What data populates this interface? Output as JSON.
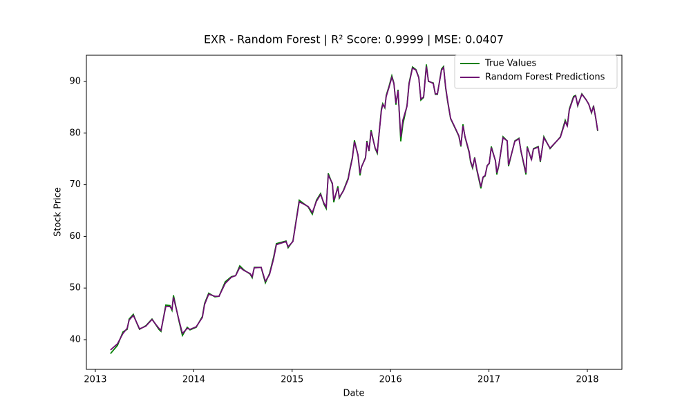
{
  "chart_data": {
    "type": "line",
    "title": "EXR - Random Forest | R² Score: 0.9999 | MSE: 0.0407",
    "xlabel": "Date",
    "ylabel": "Stock Price",
    "x": [
      2013.154,
      2013.225,
      2013.281,
      2013.323,
      2013.344,
      2013.386,
      2013.428,
      2013.449,
      2013.513,
      2013.576,
      2013.646,
      2013.667,
      2013.716,
      2013.758,
      2013.779,
      2013.794,
      2013.85,
      2013.885,
      2013.934,
      2013.962,
      2014.025,
      2014.088,
      2014.11,
      2014.152,
      2014.215,
      2014.257,
      2014.32,
      2014.383,
      2014.426,
      2014.468,
      2014.51,
      2014.573,
      2014.594,
      2014.615,
      2014.685,
      2014.728,
      2014.77,
      2014.812,
      2014.84,
      2014.938,
      2014.959,
      2015.008,
      2015.072,
      2015.163,
      2015.205,
      2015.247,
      2015.289,
      2015.324,
      2015.346,
      2015.367,
      2015.409,
      2015.423,
      2015.465,
      2015.479,
      2015.521,
      2015.57,
      2015.584,
      2015.612,
      2015.633,
      2015.669,
      2015.69,
      2015.704,
      2015.746,
      2015.76,
      2015.781,
      2015.802,
      2015.844,
      2015.865,
      2015.907,
      2015.921,
      2015.942,
      2015.956,
      2015.985,
      2016.013,
      2016.034,
      2016.055,
      2016.076,
      2016.104,
      2016.125,
      2016.167,
      2016.188,
      2016.223,
      2016.258,
      2016.287,
      2016.308,
      2016.336,
      2016.364,
      2016.385,
      2016.434,
      2016.455,
      2016.476,
      2016.518,
      2016.539,
      2016.56,
      2016.581,
      2016.61,
      2016.645,
      2016.694,
      2016.715,
      2016.736,
      2016.757,
      2016.799,
      2016.813,
      2016.834,
      2016.855,
      2016.876,
      2016.918,
      2016.94,
      2016.961,
      2016.982,
      2017.003,
      2017.024,
      2017.066,
      2017.08,
      2017.101,
      2017.143,
      2017.185,
      2017.199,
      2017.263,
      2017.305,
      2017.326,
      2017.376,
      2017.389,
      2017.432,
      2017.452,
      2017.501,
      2017.522,
      2017.558,
      2017.621,
      2017.691,
      2017.726,
      2017.775,
      2017.796,
      2017.817,
      2017.86,
      2017.881,
      2017.902,
      2017.944,
      2017.986,
      2018.014,
      2018.042,
      2018.063,
      2018.084,
      2018.105
    ],
    "series": [
      {
        "name": "True Values",
        "color": "#008000",
        "values": [
          37.3,
          38.9,
          41.5,
          42.0,
          44.0,
          44.9,
          42.9,
          42.0,
          42.7,
          44.0,
          42.0,
          41.6,
          46.7,
          46.6,
          45.7,
          48.6,
          43.6,
          40.8,
          42.4,
          41.9,
          42.4,
          44.5,
          47.0,
          49.0,
          48.3,
          48.4,
          51.2,
          52.2,
          52.4,
          54.3,
          53.5,
          52.7,
          52.0,
          54.0,
          54.0,
          51.0,
          52.8,
          56.0,
          58.6,
          59.1,
          57.8,
          59.1,
          67.0,
          65.7,
          64.3,
          67.0,
          68.3,
          66.2,
          65.4,
          72.2,
          70.1,
          66.6,
          69.7,
          67.4,
          68.9,
          71.3,
          72.8,
          75.3,
          78.6,
          75.7,
          71.8,
          73.4,
          75.3,
          78.5,
          76.5,
          80.6,
          77.0,
          76.1,
          84.7,
          85.7,
          84.9,
          87.3,
          89.1,
          91.1,
          89.7,
          85.5,
          88.4,
          78.4,
          81.7,
          85.3,
          89.7,
          92.8,
          92.3,
          90.8,
          86.4,
          86.9,
          93.3,
          90.0,
          89.7,
          87.5,
          87.5,
          92.4,
          92.9,
          88.7,
          86.0,
          82.8,
          81.4,
          79.4,
          77.4,
          81.7,
          79.2,
          76.2,
          74.4,
          73.2,
          75.3,
          72.9,
          69.3,
          71.4,
          71.7,
          73.7,
          74.1,
          77.4,
          74.6,
          72.0,
          73.8,
          79.3,
          78.5,
          73.6,
          78.5,
          79.0,
          76.4,
          72.0,
          77.4,
          74.8,
          77.0,
          77.4,
          74.4,
          79.3,
          77.0,
          78.5,
          79.3,
          82.5,
          81.3,
          84.7,
          87.1,
          87.3,
          85.3,
          87.6,
          86.5,
          85.6,
          83.9,
          85.3,
          83.0,
          80.4
        ]
      },
      {
        "name": "Random Forest Predictions",
        "color": "#6f0d73",
        "values": [
          38.0,
          39.2,
          41.2,
          42.2,
          43.8,
          44.7,
          43.0,
          42.1,
          42.6,
          43.9,
          42.2,
          41.8,
          46.4,
          46.4,
          45.9,
          48.2,
          43.8,
          41.2,
          42.2,
          42.0,
          42.5,
          44.3,
          46.8,
          48.8,
          48.4,
          48.4,
          50.9,
          52.1,
          52.4,
          54.0,
          53.4,
          52.8,
          52.2,
          53.9,
          54.0,
          51.3,
          52.6,
          55.7,
          58.4,
          59.0,
          58.0,
          59.0,
          66.7,
          65.8,
          64.6,
          66.8,
          68.1,
          66.4,
          65.7,
          71.8,
          70.3,
          67.0,
          69.4,
          67.6,
          68.8,
          71.1,
          72.6,
          75.1,
          78.3,
          75.8,
          72.2,
          73.4,
          75.2,
          78.3,
          76.6,
          80.3,
          77.1,
          76.3,
          84.4,
          85.5,
          85.0,
          87.1,
          88.9,
          90.8,
          89.6,
          85.8,
          88.2,
          79.3,
          82.5,
          85.2,
          89.5,
          92.6,
          92.2,
          90.7,
          86.6,
          87.0,
          92.9,
          90.1,
          89.6,
          87.6,
          87.6,
          92.2,
          92.7,
          88.9,
          86.2,
          82.9,
          81.5,
          79.5,
          77.6,
          81.4,
          79.3,
          76.4,
          74.6,
          73.4,
          75.2,
          73.1,
          69.6,
          71.5,
          71.8,
          73.7,
          74.2,
          77.2,
          74.7,
          72.3,
          73.9,
          79.1,
          78.5,
          73.8,
          78.4,
          78.9,
          76.5,
          72.3,
          77.2,
          74.9,
          76.9,
          77.3,
          74.6,
          79.1,
          77.1,
          78.5,
          79.2,
          82.2,
          81.4,
          84.5,
          86.9,
          87.2,
          85.4,
          87.5,
          86.5,
          85.6,
          84.0,
          85.1,
          83.1,
          80.5
        ]
      }
    ],
    "xlim": [
      2012.909,
      2018.351
    ],
    "xticks": [
      2013,
      2014,
      2015,
      2016,
      2017,
      2018
    ],
    "ylim": [
      34.25,
      95.08
    ],
    "yticks": [
      40,
      50,
      60,
      70,
      80,
      90
    ],
    "grid": false,
    "legend": "upper right"
  }
}
